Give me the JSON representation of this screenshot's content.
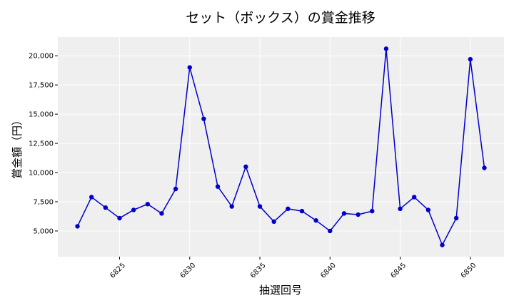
{
  "chart_data": {
    "type": "line",
    "title": "セット（ボックス）の賞金推移",
    "xlabel": "抽選回号",
    "ylabel": "賞金額（円）",
    "x": [
      6822,
      6823,
      6824,
      6825,
      6826,
      6827,
      6828,
      6829,
      6830,
      6831,
      6832,
      6833,
      6834,
      6835,
      6836,
      6837,
      6838,
      6839,
      6840,
      6841,
      6842,
      6843,
      6844,
      6845,
      6846,
      6847,
      6848,
      6849,
      6850,
      6851
    ],
    "series": [
      {
        "values": [
          5400,
          7900,
          7000,
          6100,
          6800,
          7300,
          6500,
          8600,
          19000,
          14600,
          8800,
          7100,
          10500,
          7100,
          5800,
          6900,
          6700,
          5900,
          5000,
          6500,
          6400,
          6700,
          20600,
          6900,
          7900,
          6800,
          3800,
          6100,
          19700,
          10400
        ],
        "color": "#0000cc"
      }
    ],
    "xlim": [
      6820.6,
      6852.4
    ],
    "ylim": [
      2800,
      21600
    ],
    "xticks": [
      6825,
      6830,
      6835,
      6840,
      6845,
      6850
    ],
    "xtick_labels": [
      "6825",
      "6830",
      "6835",
      "6840",
      "6845",
      "6850"
    ],
    "yticks": [
      5000,
      7500,
      10000,
      12500,
      15000,
      17500,
      20000
    ],
    "ytick_labels": [
      "5,000",
      "7,500",
      "10,000",
      "12,500",
      "15,000",
      "17,500",
      "20,000"
    ],
    "grid": true,
    "plot_background": "#efefef",
    "grid_color": "#ffffff"
  }
}
